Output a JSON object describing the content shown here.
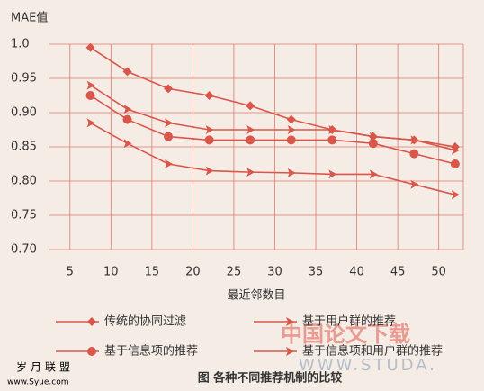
{
  "chart_data": {
    "type": "line",
    "y_label": "MAE值",
    "x_label": "最近邻数目",
    "caption": "图 各种不同推荐机制的比较",
    "watermarks": [
      "中国论文下载",
      "WWW.STUDA.",
      "岁月联盟",
      "www.Syue.com"
    ],
    "x": [
      7.5,
      12,
      17,
      22,
      27,
      32,
      37,
      42,
      47,
      52
    ],
    "series": [
      {
        "name": "传统的协同过滤",
        "color": "#d9574a",
        "marker": "diamond",
        "values": [
          0.995,
          0.96,
          0.935,
          0.925,
          0.91,
          0.89,
          0.875,
          0.865,
          0.86,
          0.85
        ]
      },
      {
        "name": "基于用户群的推荐",
        "color": "#d9574a",
        "marker": "arrow",
        "values": [
          0.94,
          0.905,
          0.885,
          0.875,
          0.875,
          0.875,
          0.875,
          0.865,
          0.86,
          0.845
        ]
      },
      {
        "name": "基于信息项的推荐",
        "color": "#d9574a",
        "marker": "circle",
        "values": [
          0.925,
          0.89,
          0.865,
          0.86,
          0.86,
          0.86,
          0.86,
          0.855,
          0.84,
          0.825
        ]
      },
      {
        "name": "基于信息项和用户群的推荐",
        "color": "#d9574a",
        "marker": "arrow",
        "values": [
          0.885,
          0.855,
          0.825,
          0.815,
          0.813,
          0.812,
          0.81,
          0.81,
          0.795,
          0.78
        ]
      }
    ],
    "xlim": [
      2.5,
      53
    ],
    "xticks": [
      5,
      10,
      15,
      20,
      25,
      30,
      35,
      40,
      45,
      50
    ],
    "ylim": [
      0.7,
      1.0
    ],
    "yticks": [
      {
        "value": 0.7,
        "label": "0.70"
      },
      0.75,
      {
        "value": 0.8,
        "label": "0.80"
      },
      0.85,
      {
        "value": 0.9,
        "label": "0.90"
      },
      0.95,
      {
        "value": 1.0,
        "label": "1.0"
      }
    ],
    "grid": true
  }
}
